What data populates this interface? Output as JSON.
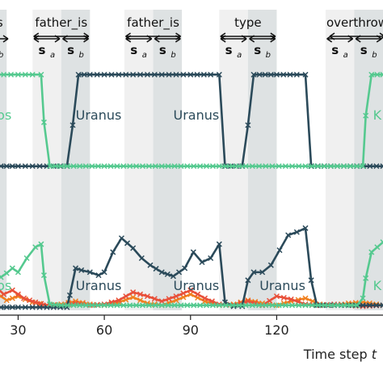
{
  "figure": {
    "xlabel_prefix": "Time step ",
    "xlabel_var": "t",
    "xticks": [
      30,
      60,
      90,
      120
    ],
    "xlim": [
      22,
      157
    ],
    "colors": {
      "uranus": "#2b4a5a",
      "kronos": "#55c98f",
      "orange": "#f0801f",
      "red": "#e8503a",
      "shade_light": "#f0f0f0",
      "shade_dark": "#dee2e3"
    }
  },
  "top_labels": [
    {
      "text": "_is",
      "x": 22
    },
    {
      "text": "father_is",
      "x": 45
    },
    {
      "text": "father_is",
      "x": 77
    },
    {
      "text": "type",
      "x": 110
    },
    {
      "text": "overthrow",
      "x": 148
    }
  ],
  "sub_labels": [
    {
      "base": "s",
      "sub": "b",
      "x": 22
    },
    {
      "base": "s",
      "sub": "a",
      "x": 40
    },
    {
      "base": "s",
      "sub": "b",
      "x": 50
    },
    {
      "base": "s",
      "sub": "a",
      "x": 72
    },
    {
      "base": "s",
      "sub": "b",
      "x": 82
    },
    {
      "base": "s",
      "sub": "a",
      "x": 105
    },
    {
      "base": "s",
      "sub": "b",
      "x": 115
    },
    {
      "base": "s",
      "sub": "a",
      "x": 142
    },
    {
      "base": "s",
      "sub": "b",
      "x": 152
    }
  ],
  "shaded_regions": [
    {
      "x0": 22,
      "x1": 26,
      "tone": "dark"
    },
    {
      "x0": 35,
      "x1": 45,
      "tone": "light"
    },
    {
      "x0": 45,
      "x1": 55,
      "tone": "dark"
    },
    {
      "x0": 67,
      "x1": 77,
      "tone": "light"
    },
    {
      "x0": 77,
      "x1": 87,
      "tone": "dark"
    },
    {
      "x0": 100,
      "x1": 110,
      "tone": "light"
    },
    {
      "x0": 110,
      "x1": 120,
      "tone": "dark"
    },
    {
      "x0": 137,
      "x1": 147,
      "tone": "light"
    },
    {
      "x0": 147,
      "x1": 157,
      "tone": "dark"
    }
  ],
  "chart_data": [
    {
      "type": "line",
      "panel": "top",
      "ylim": [
        0,
        1
      ],
      "series": [
        {
          "name": "Uranus",
          "color": "uranus",
          "marker": "x",
          "x": [
            22,
            30,
            40,
            47,
            49,
            51,
            55,
            60,
            70,
            80,
            90,
            97,
            100,
            102,
            108,
            110,
            112,
            120,
            127,
            130,
            132,
            157
          ],
          "y": [
            0.02,
            0.02,
            0.02,
            0.02,
            0.45,
            0.98,
            0.98,
            0.98,
            0.98,
            0.98,
            0.98,
            0.98,
            0.98,
            0.02,
            0.02,
            0.45,
            0.98,
            0.98,
            0.98,
            0.98,
            0.02,
            0.02
          ]
        },
        {
          "name": "Kronos",
          "color": "kronos",
          "marker": "x",
          "x": [
            22,
            25,
            30,
            35,
            38,
            39,
            41,
            45,
            60,
            100,
            130,
            150,
            151,
            153,
            157
          ],
          "y": [
            0.98,
            0.98,
            0.98,
            0.98,
            0.98,
            0.48,
            0.02,
            0.02,
            0.02,
            0.02,
            0.02,
            0.02,
            0.55,
            0.98,
            0.98
          ]
        }
      ],
      "annotations": [
        {
          "text": "Kronos",
          "x": 20,
          "y": 0.55,
          "color": "kronos"
        },
        {
          "text": "Uranus",
          "x": 58,
          "y": 0.55,
          "color": "uranus"
        },
        {
          "text": "Uranus",
          "x": 92,
          "y": 0.55,
          "color": "uranus"
        },
        {
          "text": "K",
          "x": 155,
          "y": 0.55,
          "color": "kronos"
        }
      ]
    },
    {
      "type": "line",
      "panel": "bottom",
      "ylim": [
        0,
        1
      ],
      "series": [
        {
          "name": "Uranus",
          "color": "uranus",
          "marker": "x",
          "x": [
            22,
            30,
            40,
            47,
            48,
            50,
            52,
            55,
            58,
            60,
            63,
            66,
            70,
            73,
            76,
            80,
            84,
            88,
            91,
            94,
            97,
            100,
            102,
            105,
            108,
            110,
            112,
            115,
            118,
            121,
            124,
            127,
            130,
            132,
            134,
            140,
            150,
            157
          ],
          "y": [
            0.03,
            0.03,
            0.03,
            0.03,
            0.15,
            0.42,
            0.4,
            0.38,
            0.35,
            0.38,
            0.58,
            0.72,
            0.62,
            0.52,
            0.45,
            0.38,
            0.34,
            0.42,
            0.58,
            0.48,
            0.52,
            0.66,
            0.08,
            0.04,
            0.04,
            0.3,
            0.38,
            0.38,
            0.45,
            0.6,
            0.75,
            0.78,
            0.82,
            0.3,
            0.05,
            0.05,
            0.05,
            0.05
          ]
        },
        {
          "name": "Kronos",
          "color": "kronos",
          "marker": "x",
          "x": [
            22,
            24,
            26,
            28,
            30,
            33,
            36,
            38,
            39,
            41,
            45,
            60,
            100,
            130,
            148,
            150,
            151,
            153,
            157
          ],
          "y": [
            0.38,
            0.33,
            0.37,
            0.42,
            0.38,
            0.52,
            0.63,
            0.66,
            0.35,
            0.06,
            0.05,
            0.05,
            0.05,
            0.05,
            0.05,
            0.12,
            0.32,
            0.58,
            0.68
          ]
        },
        {
          "name": "",
          "color": "orange",
          "marker": "x",
          "x": [
            22,
            26,
            30,
            35,
            40,
            45,
            50,
            55,
            60,
            65,
            70,
            75,
            80,
            85,
            90,
            95,
            100,
            105,
            110,
            115,
            120,
            125,
            130,
            135,
            140,
            145,
            150,
            157
          ],
          "y": [
            0.18,
            0.1,
            0.14,
            0.08,
            0.05,
            0.06,
            0.09,
            0.06,
            0.05,
            0.08,
            0.13,
            0.07,
            0.05,
            0.1,
            0.16,
            0.09,
            0.05,
            0.06,
            0.1,
            0.07,
            0.05,
            0.09,
            0.12,
            0.06,
            0.05,
            0.07,
            0.08,
            0.05
          ]
        },
        {
          "name": "",
          "color": "red",
          "marker": "x",
          "x": [
            22,
            25,
            28,
            32,
            36,
            40,
            45,
            50,
            55,
            60,
            65,
            70,
            75,
            80,
            85,
            90,
            95,
            100,
            105,
            110,
            115,
            120,
            125,
            130,
            135,
            140,
            145,
            150,
            157
          ],
          "y": [
            0.24,
            0.16,
            0.2,
            0.12,
            0.08,
            0.05,
            0.05,
            0.07,
            0.05,
            0.06,
            0.1,
            0.18,
            0.14,
            0.09,
            0.14,
            0.2,
            0.12,
            0.06,
            0.05,
            0.09,
            0.05,
            0.14,
            0.11,
            0.06,
            0.05,
            0.06,
            0.05,
            0.04,
            0.05
          ]
        }
      ],
      "annotations": [
        {
          "text": "Kronos",
          "x": 20,
          "y": 0.24,
          "color": "kronos"
        },
        {
          "text": "Uranus",
          "x": 58,
          "y": 0.24,
          "color": "uranus"
        },
        {
          "text": "Uranus",
          "x": 92,
          "y": 0.24,
          "color": "uranus"
        },
        {
          "text": "Uranus",
          "x": 122,
          "y": 0.24,
          "color": "uranus"
        },
        {
          "text": "K",
          "x": 155,
          "y": 0.24,
          "color": "kronos"
        }
      ]
    }
  ]
}
